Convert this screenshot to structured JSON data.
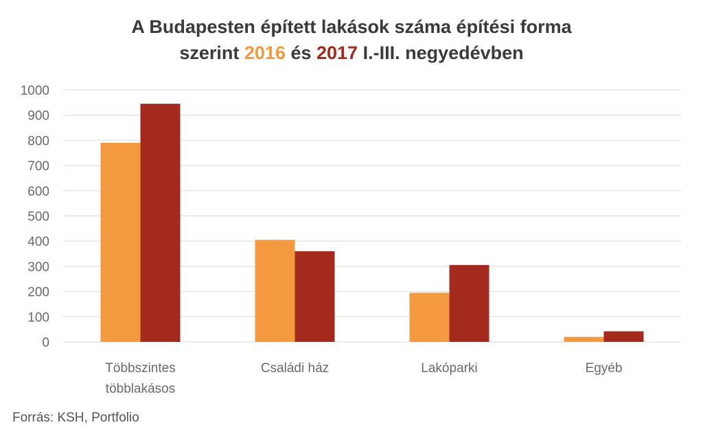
{
  "title": {
    "line1": "A Budapesten épített lakások száma építési forma",
    "line2_pre": "szerint ",
    "year_a": "2016",
    "mid": " és ",
    "year_b": "2017",
    "line2_post": " I.-III. negyedévben"
  },
  "source": "Forrás: KSH, Portfolio",
  "colors": {
    "series_2016": "#f39a40",
    "series_2017": "#a52a1e",
    "grid": "#e6e6e6",
    "axis_text": "#6a6a6a"
  },
  "chart_data": {
    "type": "bar",
    "title": "A Budapesten épített lakások száma építési forma szerint 2016 és 2017 I.-III. negyedévben",
    "categories": [
      [
        "Többszintes",
        "többlakásos"
      ],
      [
        "Családi ház"
      ],
      [
        "Lakóparki"
      ],
      [
        "Egyéb"
      ]
    ],
    "series": [
      {
        "name": "2016",
        "values": [
          790,
          405,
          195,
          20
        ]
      },
      {
        "name": "2017",
        "values": [
          945,
          360,
          305,
          42
        ]
      }
    ],
    "ylim": [
      0,
      1000
    ],
    "yticks": [
      0,
      100,
      200,
      300,
      400,
      500,
      600,
      700,
      800,
      900,
      1000
    ],
    "grid": true,
    "legend": "in title",
    "xlabel": "",
    "ylabel": ""
  }
}
